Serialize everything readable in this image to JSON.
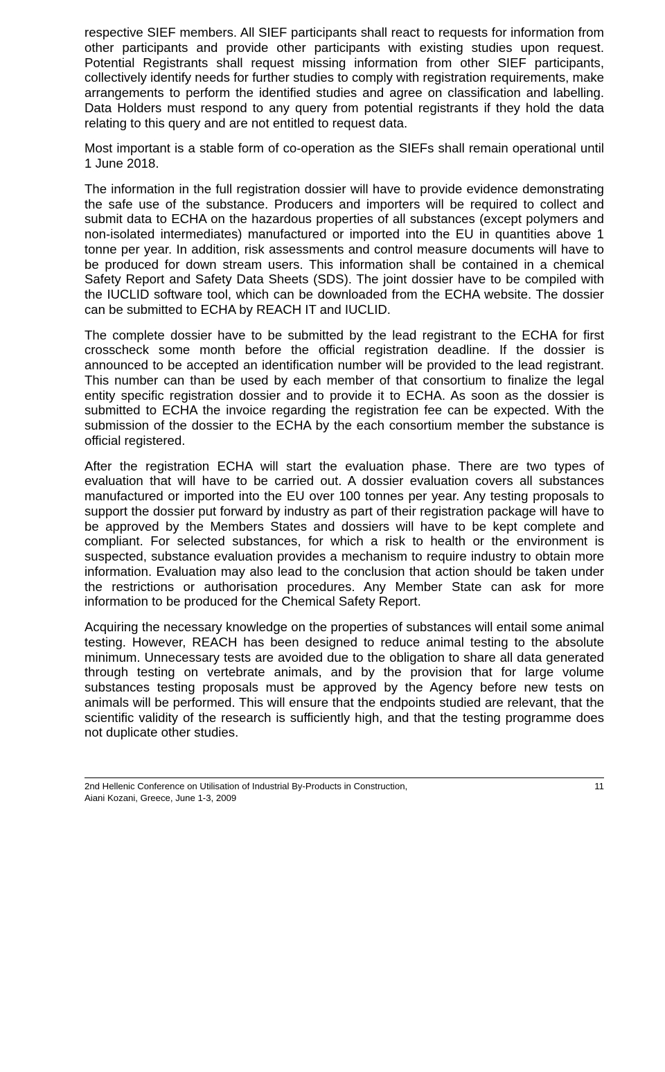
{
  "paragraphs": [
    "respective SIEF members. All SIEF participants shall react to requests for information from other participants and provide other participants with existing studies upon request. Potential Registrants shall request missing information from other SIEF participants, collectively identify needs for further studies to comply with registration requirements, make arrangements to perform the identified studies and agree on classification and labelling. Data Holders must respond to any query from potential registrants if they hold the data relating to this query and are not entitled to request data.",
    "Most important is a stable form of co-operation as the SIEFs shall remain operational until 1 June 2018.",
    "The information in the full registration dossier will have to provide evidence demonstrating the safe use of the substance. Producers and importers will be required to collect and submit data to ECHA on the hazardous properties of all substances (except polymers and non-isolated intermediates) manufactured or imported into the EU in quantities above 1 tonne per year. In addition, risk assessments and control measure documents will have to be produced for down stream users. This information shall be contained in a chemical Safety Report and Safety Data Sheets (SDS). The joint dossier have to be compiled with the IUCLID software tool, which can be downloaded from the ECHA website. The dossier can be submitted to ECHA by REACH IT and IUCLID.",
    "The complete dossier have to be submitted by the lead registrant to the ECHA for first crosscheck some month before the official registration deadline. If the dossier is announced to be accepted an identification number will be provided to the lead registrant. This number can than be used by each member of that consortium to finalize the legal entity specific registration dossier and to provide it to ECHA. As soon as the dossier is submitted to ECHA the invoice regarding the registration fee can be expected. With the submission of the dossier to the ECHA by the each consortium member the substance is official registered.",
    "After the registration ECHA will start the evaluation phase. There are two types of evaluation that will have to be carried out. A dossier evaluation covers all substances manufactured or imported into the EU over 100 tonnes per year. Any testing proposals to support the dossier put forward by industry as part of their registration package will have to be approved by the Members States and dossiers will have to be kept complete and compliant. For selected substances, for which a risk to health or the environment is suspected, substance evaluation provides a mechanism to require industry to obtain more information. Evaluation may also lead to the conclusion that action should be taken under the restrictions or authorisation procedures. Any Member State can ask for more information to be produced for the Chemical Safety Report.",
    "Acquiring the necessary knowledge on the properties of substances will entail some animal testing. However, REACH has been designed to reduce animal testing to the absolute minimum. Unnecessary tests are avoided due to the obligation to share all data generated through testing on vertebrate animals, and by the provision that for large volume substances testing proposals must be approved by the Agency before new tests on animals will be performed. This will ensure that the endpoints studied are relevant, that the scientific validity of the research is sufficiently high, and that the testing programme does not duplicate other studies."
  ],
  "footer": {
    "line1": "2nd Hellenic Conference on Utilisation of Industrial By-Products in Construction,",
    "line2": "Aiani Kozani, Greece, June 1-3, 2009",
    "page": "11"
  }
}
